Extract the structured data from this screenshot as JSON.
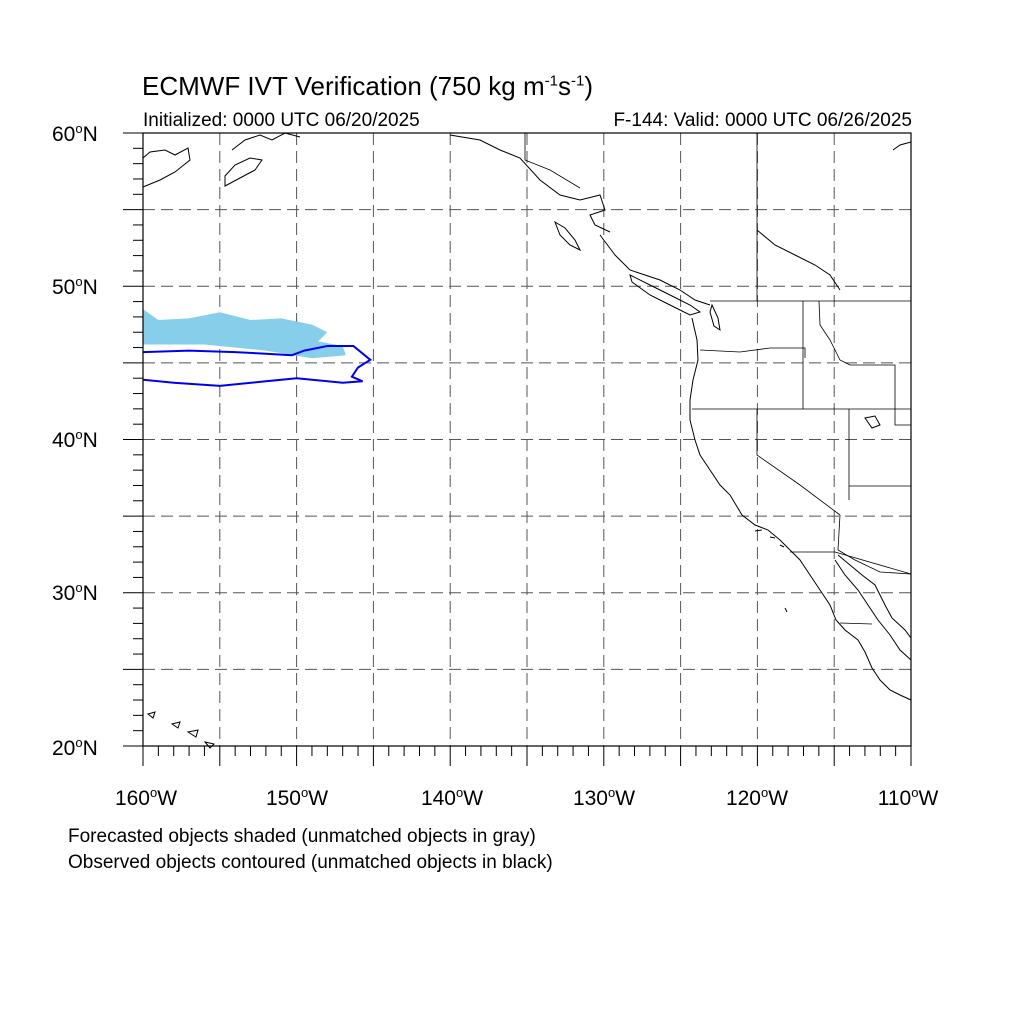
{
  "title": {
    "prefix": "ECMWF IVT Verification (750 kg m",
    "exp1": "-1",
    "mid": "s",
    "exp2": "-1",
    "suffix": ")"
  },
  "initialized": "Initialized: 0000 UTC 06/20/2025",
  "valid": "F-144: Valid: 0000 UTC 06/26/2025",
  "lat_labels": [
    {
      "num": "60",
      "deg": "o",
      "hem": "N"
    },
    {
      "num": "50",
      "deg": "o",
      "hem": "N"
    },
    {
      "num": "40",
      "deg": "o",
      "hem": "N"
    },
    {
      "num": "30",
      "deg": "o",
      "hem": "N"
    },
    {
      "num": "20",
      "deg": "o",
      "hem": "N"
    }
  ],
  "lon_labels": [
    {
      "num": "160",
      "deg": "o",
      "hem": "W"
    },
    {
      "num": "150",
      "deg": "o",
      "hem": "W"
    },
    {
      "num": "140",
      "deg": "o",
      "hem": "W"
    },
    {
      "num": "130",
      "deg": "o",
      "hem": "W"
    },
    {
      "num": "120",
      "deg": "o",
      "hem": "W"
    },
    {
      "num": "110",
      "deg": "o",
      "hem": "W"
    }
  ],
  "footer": {
    "line1": "Forecasted objects shaded (unmatched objects in gray)",
    "line2": "Observed objects contoured (unmatched objects in black)"
  },
  "colors": {
    "forecast_fill": "#87ceeb",
    "observed_contour": "#0000ee",
    "coast": "#000000",
    "grid": "#555555"
  },
  "map": {
    "lon_range": [
      -160,
      -110
    ],
    "lat_range": [
      20,
      60
    ],
    "grid_lons": [
      -155,
      -150,
      -145,
      -140,
      -135,
      -130,
      -125,
      -120,
      -115
    ],
    "grid_lats": [
      25,
      30,
      35,
      40,
      45,
      50,
      55
    ],
    "forecast_object": [
      [
        -160,
        48.5
      ],
      [
        -159,
        47.8
      ],
      [
        -157,
        47.9
      ],
      [
        -155,
        48.3
      ],
      [
        -153,
        47.8
      ],
      [
        -151,
        47.9
      ],
      [
        -149,
        47.5
      ],
      [
        -148,
        47.0
      ],
      [
        -148.6,
        46.4
      ],
      [
        -147,
        46.1
      ],
      [
        -146.8,
        45.5
      ],
      [
        -149,
        45.3
      ],
      [
        -152,
        45.8
      ],
      [
        -156,
        46.2
      ],
      [
        -160,
        46.2
      ]
    ],
    "observed_object": [
      [
        -160,
        45.7
      ],
      [
        -157,
        45.8
      ],
      [
        -154,
        45.7
      ],
      [
        -152,
        45.6
      ],
      [
        -150.3,
        45.5
      ],
      [
        -149.5,
        45.8
      ],
      [
        -148,
        46.1
      ],
      [
        -146.3,
        46.1
      ],
      [
        -145.2,
        45.2
      ],
      [
        -146,
        44.7
      ],
      [
        -146.4,
        44.1
      ],
      [
        -145.7,
        43.8
      ],
      [
        -147,
        43.7
      ],
      [
        -149,
        43.9
      ],
      [
        -150,
        44.0
      ],
      [
        -152,
        43.8
      ],
      [
        -155,
        43.5
      ],
      [
        -158,
        43.7
      ],
      [
        -160,
        43.9
      ]
    ]
  }
}
